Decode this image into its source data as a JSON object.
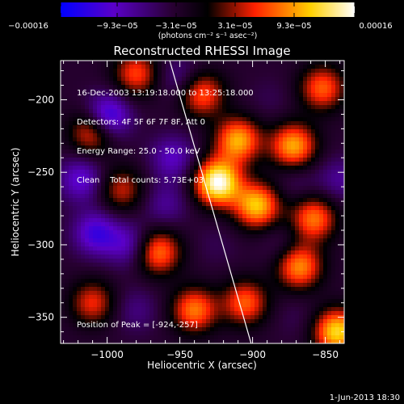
{
  "chart_data": {
    "type": "heatmap",
    "title": "Reconstructed RHESSI Image",
    "xlabel": "Heliocentric X (arcsec)",
    "ylabel": "Heliocentric Y (arcsec)",
    "xlim": [
      -1032,
      -837
    ],
    "ylim": [
      -368,
      -173
    ],
    "x_ticks": [
      {
        "value": -1000,
        "label": "−1000"
      },
      {
        "value": -950,
        "label": "−950"
      },
      {
        "value": -900,
        "label": "−900"
      },
      {
        "value": -850,
        "label": "−850"
      }
    ],
    "y_ticks": [
      {
        "value": -200,
        "label": "−200"
      },
      {
        "value": -250,
        "label": "−250"
      },
      {
        "value": -300,
        "label": "−300"
      },
      {
        "value": -350,
        "label": "−350"
      }
    ],
    "colorbar": {
      "range": [
        -0.00016,
        0.00016
      ],
      "tick_labels": [
        "−0.00016",
        "−9.3e−05",
        "−3.1e−05",
        "3.1e−05",
        "9.3e−05",
        "0.00016"
      ],
      "colors": [
        "#0000ff",
        "#5a00c8",
        "#280032",
        "#000000",
        "#ff2000",
        "#ffd000",
        "#ffffff"
      ]
    },
    "units_label": "(photons cm⁻² s⁻¹ asec⁻²)",
    "annotations": [
      "16-Dec-2003 13:19:18.000 to 13:25:18.000",
      "Detectors: 4F 5F 6F 7F 8F, Att 0",
      "Energy Range: 25.0 - 50.0 keV",
      "Clean    Total counts: 5.73E+03"
    ],
    "peak_label": "Position of Peak = [-924,-257]",
    "peak": {
      "x": -924,
      "y": -257
    },
    "limb_line": [
      [
        -957,
        -173
      ],
      [
        -901,
        -368
      ]
    ],
    "sources": [
      {
        "x": -924,
        "y": -257,
        "value": 0.00016
      },
      {
        "x": -910,
        "y": -228,
        "value": 0.0001
      },
      {
        "x": -897,
        "y": -273,
        "value": 0.00011
      },
      {
        "x": -872,
        "y": -232,
        "value": 0.0001
      },
      {
        "x": -858,
        "y": -282,
        "value": 8e-05
      },
      {
        "x": -868,
        "y": -315,
        "value": 9e-05
      },
      {
        "x": -842,
        "y": -360,
        "value": 0.00012
      },
      {
        "x": -852,
        "y": -192,
        "value": 7e-05
      },
      {
        "x": -935,
        "y": -196,
        "value": 7e-05
      },
      {
        "x": -965,
        "y": -305,
        "value": 8e-05
      },
      {
        "x": -940,
        "y": -345,
        "value": 8e-05
      },
      {
        "x": -905,
        "y": -340,
        "value": 7e-05
      },
      {
        "x": -1010,
        "y": -222,
        "value": 7e-05
      },
      {
        "x": -980,
        "y": -182,
        "value": 6e-05
      },
      {
        "x": -990,
        "y": -262,
        "value": 4e-05
      },
      {
        "x": -1010,
        "y": -340,
        "value": 5e-05
      },
      {
        "x": -1000,
        "y": -212,
        "value": -0.00015
      },
      {
        "x": -1018,
        "y": -255,
        "value": -0.00011
      },
      {
        "x": -985,
        "y": -300,
        "value": -0.0001
      },
      {
        "x": -1008,
        "y": -292,
        "value": -0.00012
      },
      {
        "x": -955,
        "y": -240,
        "value": -0.0001
      },
      {
        "x": -950,
        "y": -185,
        "value": -8e-05
      },
      {
        "x": -960,
        "y": -272,
        "value": -8e-05
      },
      {
        "x": -880,
        "y": -300,
        "value": -6e-05
      },
      {
        "x": -925,
        "y": -300,
        "value": -5e-05
      },
      {
        "x": -870,
        "y": -256,
        "value": -6e-05
      },
      {
        "x": -840,
        "y": -255,
        "value": -8e-05
      },
      {
        "x": -888,
        "y": -200,
        "value": -5e-05
      },
      {
        "x": -980,
        "y": -345,
        "value": -7e-05
      },
      {
        "x": -870,
        "y": -350,
        "value": -5e-05
      }
    ]
  },
  "footer": {
    "date": "1-Jun-2013 18:30"
  }
}
